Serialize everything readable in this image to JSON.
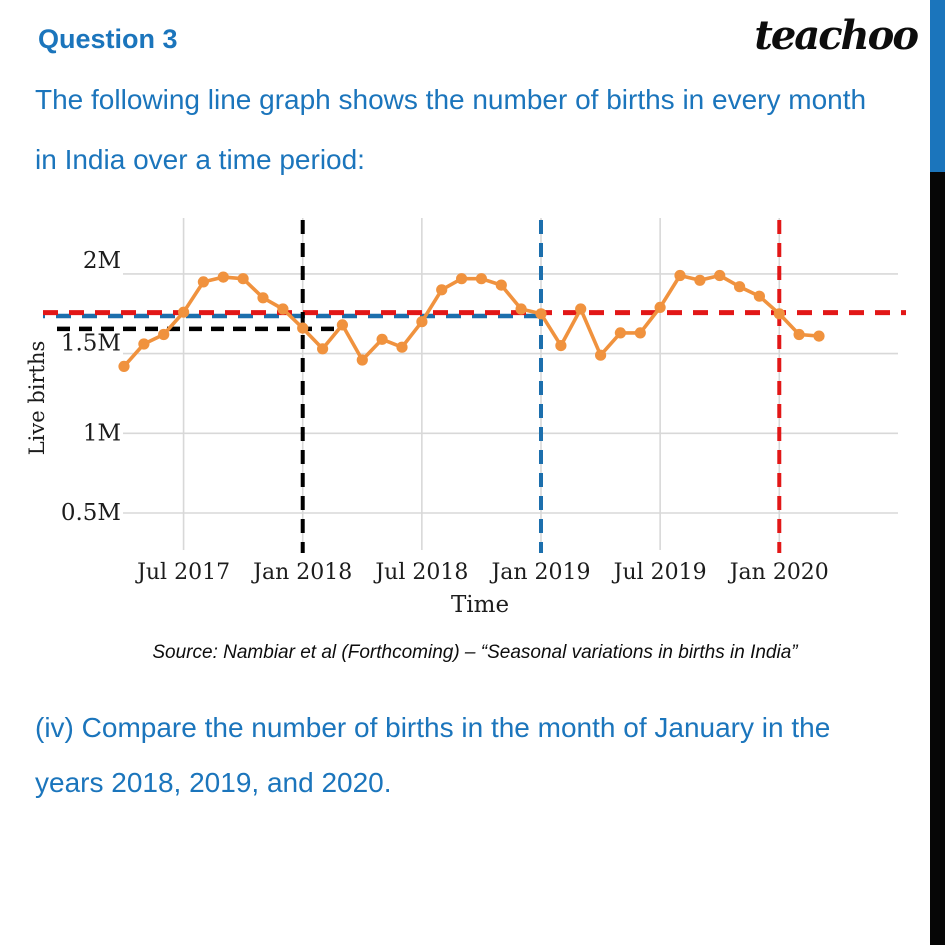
{
  "header": {
    "question_label": "Question 3",
    "logo_text": "teachoo"
  },
  "intro": {
    "line1": "The following line graph shows the number of births in every month",
    "line2": "in India over a time period:"
  },
  "question": {
    "line1": "(iv) Compare the number of births in the month of January in the",
    "line2": "years 2018, 2019, and 2020."
  },
  "colors": {
    "accent_blue": "#1b75bc",
    "series_orange": "#f0923e",
    "ref_red": "#e21717",
    "ref_blue": "#1c6fad",
    "ref_black": "#000000",
    "gridline": "#d8d8d8",
    "sidebar_blue": "#1b75bc",
    "sidebar_black": "#060606"
  },
  "chart_data": {
    "type": "line",
    "title": "",
    "xlabel": "Time",
    "ylabel": "Live births",
    "source_note": "Source: Nambiar et al (Forthcoming) – “Seasonal variations in births in India”",
    "grid": true,
    "legend": "none",
    "unit": "millions of live births",
    "ylim": [
      0.3,
      2.3
    ],
    "categories": [
      "Apr 2017",
      "May 2017",
      "Jun 2017",
      "Jul 2017",
      "Aug 2017",
      "Sep 2017",
      "Oct 2017",
      "Nov 2017",
      "Dec 2017",
      "Jan 2018",
      "Feb 2018",
      "Mar 2018",
      "Apr 2018",
      "May 2018",
      "Jun 2018",
      "Jul 2018",
      "Aug 2018",
      "Sep 2018",
      "Oct 2018",
      "Nov 2018",
      "Dec 2018",
      "Jan 2019",
      "Feb 2019",
      "Mar 2019",
      "Apr 2019",
      "May 2019",
      "Jun 2019",
      "Jul 2019",
      "Aug 2019",
      "Sep 2019",
      "Oct 2019",
      "Nov 2019",
      "Dec 2019",
      "Jan 2020",
      "Feb 2020",
      "Mar 2020"
    ],
    "values_millions": [
      1.42,
      1.56,
      1.62,
      1.76,
      1.95,
      1.98,
      1.97,
      1.85,
      1.78,
      1.66,
      1.53,
      1.68,
      1.46,
      1.59,
      1.54,
      1.7,
      1.9,
      1.97,
      1.97,
      1.93,
      1.78,
      1.75,
      1.55,
      1.78,
      1.49,
      1.63,
      1.63,
      1.79,
      1.99,
      1.96,
      1.99,
      1.92,
      1.86,
      1.75,
      1.62,
      1.61
    ],
    "y_ticks": [
      {
        "value": 2.0,
        "label": "2M"
      },
      {
        "value": 1.5,
        "label": "1.5M"
      },
      {
        "value": 1.0,
        "label": "1M"
      },
      {
        "value": 0.5,
        "label": "0.5M"
      }
    ],
    "x_ticks": [
      {
        "index": 3,
        "label": "Jul 2017"
      },
      {
        "index": 9,
        "label": "Jan 2018"
      },
      {
        "index": 15,
        "label": "Jul 2018"
      },
      {
        "index": 21,
        "label": "Jan 2019"
      },
      {
        "index": 27,
        "label": "Jul 2019"
      },
      {
        "index": 33,
        "label": "Jan 2020"
      }
    ],
    "reference_lines": {
      "vertical": [
        {
          "month": "Jan 2018",
          "index": 9,
          "color": "#000000"
        },
        {
          "month": "Jan 2019",
          "index": 21,
          "color": "#1c6fad"
        },
        {
          "month": "Jan 2020",
          "index": 33,
          "color": "#e21717"
        }
      ],
      "horizontal": [
        {
          "month": "Jan 2018",
          "value": 1.655,
          "color": "#000000",
          "extent": "short"
        },
        {
          "month": "Jan 2019",
          "value": 1.736,
          "color": "#1c6fad",
          "extent": "medium"
        },
        {
          "month": "Jan 2020",
          "value": 1.757,
          "color": "#e21717",
          "extent": "full"
        }
      ]
    }
  }
}
